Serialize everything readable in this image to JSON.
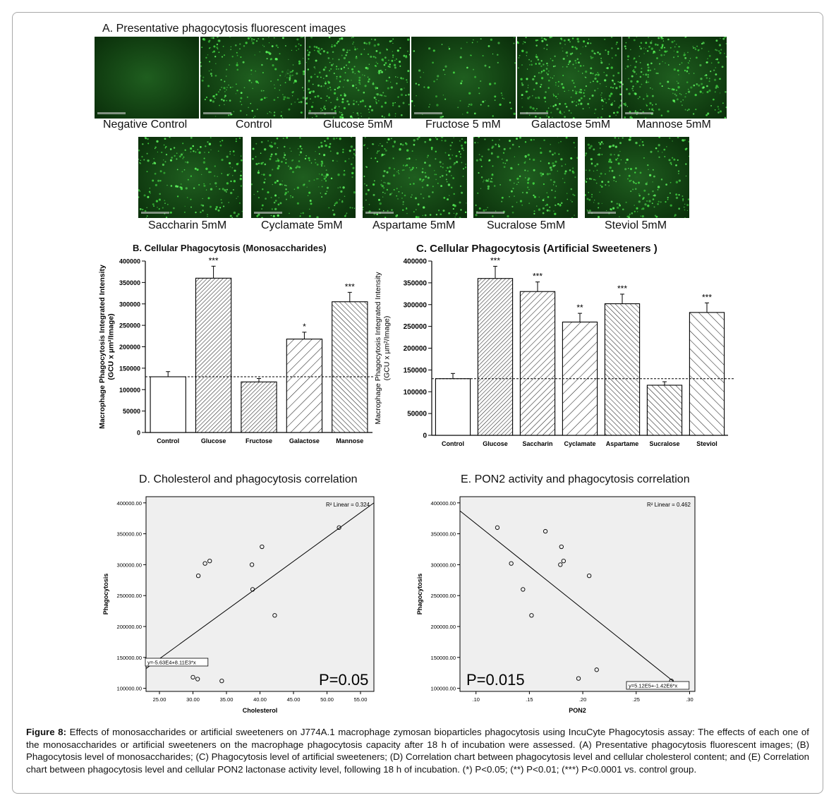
{
  "panel_a": {
    "title": "A. Presentative  phagocytosis fluorescent images",
    "row1": [
      "Negative Control",
      "Control",
      "Glucose 5mM",
      "Fructose 5 mM",
      "Galactose 5mM",
      "Mannose 5mM"
    ],
    "row2": [
      "Saccharin 5mM",
      "Cyclamate 5mM",
      "Aspartame 5mM",
      "Sucralose 5mM",
      "Steviol 5mM"
    ],
    "overlay_letter": "A"
  },
  "colors": {
    "image_bg": "#0c3a0c",
    "cell": "#3fd43f",
    "frame": "#a8a8a8"
  },
  "caption": {
    "label": "Figure 8:",
    "text": "Effects of monosaccharides or artificial sweeteners on J774A.1 macrophage zymosan bioparticles phagocytosis using IncuCyte Phagocytosis assay: The effects of each one of the monosaccharides or artificial sweeteners on the macrophage phagocytosis capacity after 18 h of incubation were assessed. (A) Presentative phagocytosis fluorescent images; (B) Phagocytosis level of monosaccharides; (C) Phagocytosis level of artificial sweeteners; (D) Correlation chart between phagocytosis level and cellular cholesterol content; and (E) Correlation chart between phagocytosis level and cellular PON2 lactonase activity level, following 18 h of incubation. (*) P<0.05; (**) P<0.01; (***) P<0.0001 vs. control group."
  },
  "chart_data": [
    {
      "id": "B",
      "type": "bar",
      "title": "B. Cellular Phagocytosis (Monosaccharides)",
      "ylabel": [
        "Macrophage Phagocytosis Integrated Intensity",
        "(GCU x µm²/Image)"
      ],
      "categories": [
        "Control",
        "Glucose",
        "Fructose",
        "Galactose",
        "Mannose"
      ],
      "values": [
        130000,
        360000,
        118000,
        218000,
        305000
      ],
      "errors": [
        12000,
        28000,
        8000,
        16000,
        22000
      ],
      "significance": [
        "",
        "***",
        "",
        "*",
        "***"
      ],
      "hatch": [
        "none",
        "dense",
        "dense",
        "sparse",
        "dense-rev"
      ],
      "ylim": [
        0,
        400000
      ],
      "yticks": [
        "0",
        "50000",
        "100000",
        "150000",
        "200000",
        "250000",
        "300000",
        "350000",
        "400000"
      ],
      "reference_line": 130000
    },
    {
      "id": "C",
      "type": "bar",
      "title": "C. Cellular Phagocytosis (Artificial Sweeteners )",
      "ylabel": [
        "Macrophage Phagocytosis Integrated Intensity",
        "(GCU x µm²/Image)"
      ],
      "categories": [
        "Control",
        "Glucose",
        "Saccharin",
        "Cyclamate",
        "Aspartame",
        "Sucralose",
        "Steviol"
      ],
      "values": [
        130000,
        360000,
        330000,
        260000,
        302000,
        115000,
        282000
      ],
      "errors": [
        12000,
        28000,
        22000,
        20000,
        22000,
        8000,
        22000
      ],
      "significance": [
        "",
        "***",
        "***",
        "**",
        "***",
        "",
        "***"
      ],
      "hatch": [
        "none",
        "dense",
        "medium",
        "sparse",
        "dense-rev",
        "medium-rev",
        "sparse-rev"
      ],
      "ylim": [
        0,
        400000
      ],
      "yticks": [
        "0",
        "50000",
        "100000",
        "150000",
        "200000",
        "250000",
        "300000",
        "350000",
        "400000"
      ],
      "reference_line": 130000
    },
    {
      "id": "D",
      "type": "scatter",
      "title": "D. Cholesterol and phagocytosis correlation",
      "xlabel": "Cholesterol",
      "ylabel": "Phagocytosis",
      "xlim": [
        23,
        57
      ],
      "ylim": [
        95000,
        410000
      ],
      "xticks": [
        25,
        30,
        35,
        40,
        45,
        50,
        55
      ],
      "xtick_labels": [
        "25.00",
        "30.00",
        "35.00",
        "40.00",
        "45.00",
        "50.00",
        "55.00"
      ],
      "yticks": [
        100000,
        150000,
        200000,
        250000,
        300000,
        350000,
        400000
      ],
      "ytick_labels": [
        "100000.00",
        "150000.00",
        "200000.00",
        "250000.00",
        "300000.00",
        "350000.00",
        "400000.00"
      ],
      "points": [
        [
          51.8,
          360000
        ],
        [
          40.3,
          329000
        ],
        [
          32.5,
          306000
        ],
        [
          31.8,
          302000
        ],
        [
          30.8,
          282000
        ],
        [
          38.8,
          300000
        ],
        [
          38.9,
          260000
        ],
        [
          42.2,
          218000
        ],
        [
          30.0,
          118000
        ],
        [
          30.7,
          115000
        ],
        [
          34.3,
          112000
        ]
      ],
      "fit_line": [
        [
          23,
          132000
        ],
        [
          57,
          400000
        ]
      ],
      "r2_label": "R² Linear = 0.324",
      "equation": "y=-5.63E4+8.11E3*x",
      "p_value": "P=0.05"
    },
    {
      "id": "E",
      "type": "scatter",
      "title": "E. PON2 activity and phagocytosis correlation",
      "xlabel": "PON2",
      "ylabel": "Phagocytosis",
      "xlim": [
        0.085,
        0.305
      ],
      "ylim": [
        95000,
        410000
      ],
      "xticks": [
        0.1,
        0.15,
        0.2,
        0.25,
        0.3
      ],
      "xtick_labels": [
        ".10",
        ".15",
        ".20",
        ".25",
        ".30"
      ],
      "yticks": [
        100000,
        150000,
        200000,
        250000,
        300000,
        350000,
        400000
      ],
      "ytick_labels": [
        "100000.00",
        "150000.00",
        "200000.00",
        "250000.00",
        "300000.00",
        "350000.00",
        "400000.00"
      ],
      "points": [
        [
          0.12,
          360000
        ],
        [
          0.165,
          354000
        ],
        [
          0.18,
          329000
        ],
        [
          0.182,
          306000
        ],
        [
          0.179,
          300000
        ],
        [
          0.133,
          302000
        ],
        [
          0.206,
          282000
        ],
        [
          0.144,
          260000
        ],
        [
          0.152,
          218000
        ],
        [
          0.213,
          130000
        ],
        [
          0.196,
          116000
        ],
        [
          0.283,
          112000
        ]
      ],
      "fit_line": [
        [
          0.085,
          387000
        ],
        [
          0.293,
          100000
        ]
      ],
      "r2_label": "R² Linear = 0.462",
      "equation": "y=5.12E5+-1.42E6*x",
      "p_value": "P=0.015"
    }
  ]
}
